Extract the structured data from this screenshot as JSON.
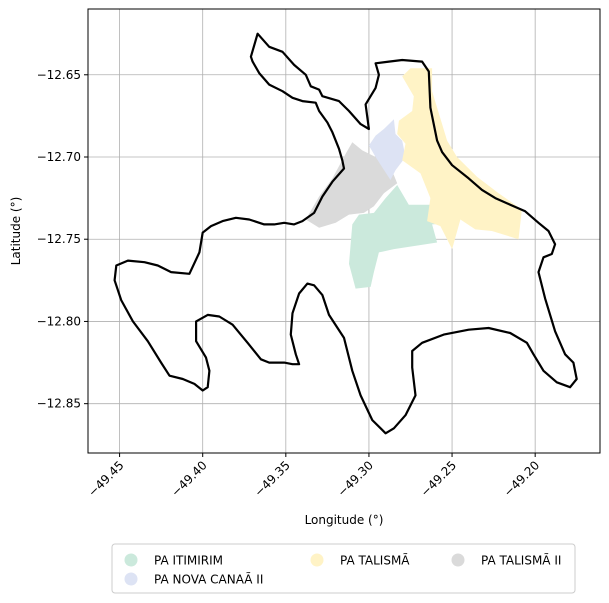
{
  "chart_data": {
    "type": "map",
    "xlabel": "Longitude (°)",
    "ylabel": "Latitude (°)",
    "xlim": [
      -49.469,
      -49.161
    ],
    "ylim": [
      -12.88,
      -12.61
    ],
    "grid": true,
    "legend_position": "bottom-center",
    "x_ticks": [
      -49.45,
      -49.4,
      -49.35,
      -49.3,
      -49.25,
      -49.2
    ],
    "x_tick_labels": [
      "−49.45",
      "−49.40",
      "−49.35",
      "−49.30",
      "−49.25",
      "−49.20"
    ],
    "y_ticks": [
      -12.65,
      -12.7,
      -12.75,
      -12.8,
      -12.85
    ],
    "y_tick_labels": [
      "−12.65",
      "−12.70",
      "−12.75",
      "−12.80",
      "−12.85"
    ],
    "boundary": {
      "color": "#000000",
      "coords": [
        [
          -49.367,
          -12.625
        ],
        [
          -49.36,
          -12.633
        ],
        [
          -49.352,
          -12.636
        ],
        [
          -49.345,
          -12.644
        ],
        [
          -49.338,
          -12.65
        ],
        [
          -49.335,
          -12.657
        ],
        [
          -49.33,
          -12.659
        ],
        [
          -49.328,
          -12.663
        ],
        [
          -49.318,
          -12.666
        ],
        [
          -49.312,
          -12.672
        ],
        [
          -49.305,
          -12.68
        ],
        [
          -49.3,
          -12.683
        ],
        [
          -49.302,
          -12.668
        ],
        [
          -49.296,
          -12.658
        ],
        [
          -49.294,
          -12.65
        ],
        [
          -49.296,
          -12.643
        ],
        [
          -49.288,
          -12.642
        ],
        [
          -49.28,
          -12.641
        ],
        [
          -49.268,
          -12.642
        ],
        [
          -49.264,
          -12.648
        ],
        [
          -49.263,
          -12.67
        ],
        [
          -49.259,
          -12.69
        ],
        [
          -49.256,
          -12.697
        ],
        [
          -49.25,
          -12.705
        ],
        [
          -49.24,
          -12.713
        ],
        [
          -49.232,
          -12.72
        ],
        [
          -49.224,
          -12.725
        ],
        [
          -49.215,
          -12.729
        ],
        [
          -49.206,
          -12.733
        ],
        [
          -49.198,
          -12.74
        ],
        [
          -49.192,
          -12.745
        ],
        [
          -49.188,
          -12.753
        ],
        [
          -49.19,
          -12.759
        ],
        [
          -49.195,
          -12.761
        ],
        [
          -49.198,
          -12.77
        ],
        [
          -49.194,
          -12.786
        ],
        [
          -49.188,
          -12.806
        ],
        [
          -49.182,
          -12.82
        ],
        [
          -49.177,
          -12.825
        ],
        [
          -49.175,
          -12.835
        ],
        [
          -49.179,
          -12.84
        ],
        [
          -49.187,
          -12.837
        ],
        [
          -49.195,
          -12.83
        ],
        [
          -49.201,
          -12.82
        ],
        [
          -49.205,
          -12.813
        ],
        [
          -49.215,
          -12.807
        ],
        [
          -49.228,
          -12.804
        ],
        [
          -49.24,
          -12.805
        ],
        [
          -49.255,
          -12.808
        ],
        [
          -49.268,
          -12.813
        ],
        [
          -49.274,
          -12.818
        ],
        [
          -49.274,
          -12.828
        ],
        [
          -49.272,
          -12.845
        ],
        [
          -49.278,
          -12.857
        ],
        [
          -49.285,
          -12.865
        ],
        [
          -49.29,
          -12.868
        ],
        [
          -49.298,
          -12.86
        ],
        [
          -49.305,
          -12.845
        ],
        [
          -49.31,
          -12.83
        ],
        [
          -49.315,
          -12.81
        ],
        [
          -49.324,
          -12.796
        ],
        [
          -49.328,
          -12.784
        ],
        [
          -49.333,
          -12.778
        ],
        [
          -49.337,
          -12.777
        ],
        [
          -49.342,
          -12.783
        ],
        [
          -49.346,
          -12.795
        ],
        [
          -49.347,
          -12.808
        ],
        [
          -49.344,
          -12.82
        ],
        [
          -49.342,
          -12.826
        ],
        [
          -49.346,
          -12.826
        ],
        [
          -49.351,
          -12.825
        ],
        [
          -49.36,
          -12.825
        ],
        [
          -49.365,
          -12.823
        ],
        [
          -49.373,
          -12.813
        ],
        [
          -49.382,
          -12.802
        ],
        [
          -49.39,
          -12.797
        ],
        [
          -49.397,
          -12.796
        ],
        [
          -49.404,
          -12.8
        ],
        [
          -49.404,
          -12.812
        ],
        [
          -49.398,
          -12.822
        ],
        [
          -49.396,
          -12.83
        ],
        [
          -49.397,
          -12.84
        ],
        [
          -49.4,
          -12.842
        ],
        [
          -49.405,
          -12.838
        ],
        [
          -49.412,
          -12.835
        ],
        [
          -49.42,
          -12.833
        ],
        [
          -49.425,
          -12.825
        ],
        [
          -49.433,
          -12.812
        ],
        [
          -49.442,
          -12.8
        ],
        [
          -49.449,
          -12.787
        ],
        [
          -49.453,
          -12.775
        ],
        [
          -49.452,
          -12.766
        ],
        [
          -49.445,
          -12.763
        ],
        [
          -49.435,
          -12.764
        ],
        [
          -49.427,
          -12.766
        ],
        [
          -49.419,
          -12.77
        ],
        [
          -49.408,
          -12.771
        ],
        [
          -49.402,
          -12.758
        ],
        [
          -49.4,
          -12.746
        ],
        [
          -49.395,
          -12.742
        ],
        [
          -49.388,
          -12.739
        ],
        [
          -49.38,
          -12.737
        ],
        [
          -49.372,
          -12.738
        ],
        [
          -49.363,
          -12.741
        ],
        [
          -49.357,
          -12.741
        ],
        [
          -49.351,
          -12.74
        ],
        [
          -49.345,
          -12.741
        ],
        [
          -49.34,
          -12.739
        ],
        [
          -49.333,
          -12.734
        ],
        [
          -49.328,
          -12.724
        ],
        [
          -49.322,
          -12.715
        ],
        [
          -49.315,
          -12.707
        ],
        [
          -49.316,
          -12.702
        ],
        [
          -49.318,
          -12.695
        ],
        [
          -49.322,
          -12.685
        ],
        [
          -49.325,
          -12.679
        ],
        [
          -49.33,
          -12.672
        ],
        [
          -49.332,
          -12.667
        ],
        [
          -49.34,
          -12.666
        ],
        [
          -49.346,
          -12.664
        ],
        [
          -49.352,
          -12.66
        ],
        [
          -49.36,
          -12.656
        ],
        [
          -49.366,
          -12.649
        ],
        [
          -49.37,
          -12.642
        ],
        [
          -49.371,
          -12.639
        ],
        [
          -49.367,
          -12.625
        ]
      ]
    },
    "series": [
      {
        "name": "PA TALISMÃ II",
        "color": "#dadada",
        "coords": [
          [
            -49.338,
            -12.738
          ],
          [
            -49.33,
            -12.743
          ],
          [
            -49.32,
            -12.74
          ],
          [
            -49.312,
            -12.735
          ],
          [
            -49.303,
            -12.734
          ],
          [
            -49.297,
            -12.73
          ],
          [
            -49.291,
            -12.722
          ],
          [
            -49.283,
            -12.716
          ],
          [
            -49.287,
            -12.706
          ],
          [
            -49.296,
            -12.7
          ],
          [
            -49.304,
            -12.696
          ],
          [
            -49.31,
            -12.691
          ],
          [
            -49.314,
            -12.698
          ],
          [
            -49.322,
            -12.713
          ],
          [
            -49.33,
            -12.724
          ]
        ]
      },
      {
        "name": "PA ITIMIRIM",
        "color": "#cbe9dc",
        "coords": [
          [
            -49.31,
            -12.741
          ],
          [
            -49.306,
            -12.735
          ],
          [
            -49.297,
            -12.734
          ],
          [
            -49.29,
            -12.725
          ],
          [
            -49.283,
            -12.717
          ],
          [
            -49.276,
            -12.729
          ],
          [
            -49.25,
            -12.729
          ],
          [
            -49.248,
            -12.74
          ],
          [
            -49.262,
            -12.741
          ],
          [
            -49.259,
            -12.752
          ],
          [
            -49.285,
            -12.756
          ],
          [
            -49.294,
            -12.758
          ],
          [
            -49.297,
            -12.77
          ],
          [
            -49.299,
            -12.779
          ],
          [
            -49.308,
            -12.78
          ],
          [
            -49.312,
            -12.765
          ]
        ]
      },
      {
        "name": "PA NOVA CANAÃ II",
        "color": "#dde3f4",
        "coords": [
          [
            -49.3,
            -12.693
          ],
          [
            -49.296,
            -12.687
          ],
          [
            -49.291,
            -12.683
          ],
          [
            -49.285,
            -12.677
          ],
          [
            -49.284,
            -12.686
          ],
          [
            -49.28,
            -12.69
          ],
          [
            -49.278,
            -12.7
          ],
          [
            -49.284,
            -12.708
          ],
          [
            -49.287,
            -12.714
          ],
          [
            -49.296,
            -12.7
          ]
        ]
      },
      {
        "name": "PA TALISMÃ",
        "color": "#fff3c6",
        "coords": [
          [
            -49.28,
            -12.651
          ],
          [
            -49.275,
            -12.646
          ],
          [
            -49.262,
            -12.646
          ],
          [
            -49.262,
            -12.66
          ],
          [
            -49.256,
            -12.68
          ],
          [
            -49.253,
            -12.69
          ],
          [
            -49.247,
            -12.7
          ],
          [
            -49.235,
            -12.712
          ],
          [
            -49.222,
            -12.722
          ],
          [
            -49.208,
            -12.732
          ],
          [
            -49.21,
            -12.75
          ],
          [
            -49.226,
            -12.745
          ],
          [
            -49.236,
            -12.744
          ],
          [
            -49.245,
            -12.738
          ],
          [
            -49.25,
            -12.756
          ],
          [
            -49.257,
            -12.742
          ],
          [
            -49.265,
            -12.739
          ],
          [
            -49.263,
            -12.725
          ],
          [
            -49.269,
            -12.71
          ],
          [
            -49.28,
            -12.702
          ],
          [
            -49.278,
            -12.692
          ],
          [
            -49.283,
            -12.686
          ],
          [
            -49.282,
            -12.678
          ],
          [
            -49.274,
            -12.672
          ],
          [
            -49.273,
            -12.663
          ]
        ]
      }
    ],
    "legend_order": [
      "PA ITIMIRIM",
      "PA NOVA CANAÃ II",
      "PA TALISMÃ",
      "PA TALISMÃ II"
    ]
  }
}
